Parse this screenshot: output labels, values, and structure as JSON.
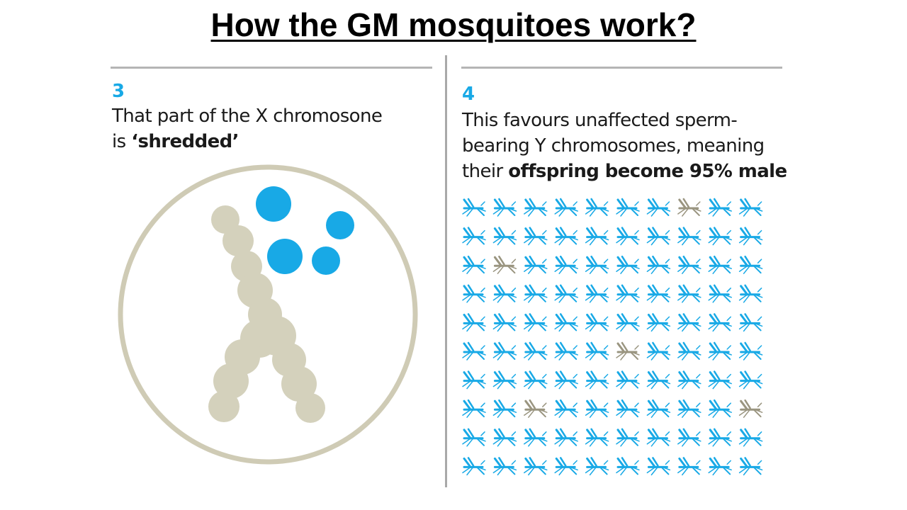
{
  "title": "How the GM mosquitoes work?",
  "panel3": {
    "number": "3",
    "line1": "That part of the X chromosone",
    "line2_prefix": "is ",
    "line2_bold": "‘shredded’"
  },
  "panel4": {
    "number": "4",
    "line1": "This favours unaffected sperm-",
    "line2": "bearing Y chromosomes, meaning",
    "line3_prefix": "their ",
    "line3_bold": "offspring become 95% male"
  },
  "colors": {
    "accent_blue": "#18a9e6",
    "chromosome": "#d4d1bc",
    "circle_outline": "#cfcbb5",
    "male_mosquito": "#18a9e6",
    "female_mosquito": "#9a9580"
  },
  "mosquito_grid": {
    "rows": 10,
    "cols": 10,
    "total": 100,
    "female_cells": [
      [
        0,
        7
      ],
      [
        2,
        1
      ],
      [
        5,
        5
      ],
      [
        7,
        2
      ],
      [
        7,
        9
      ]
    ]
  }
}
